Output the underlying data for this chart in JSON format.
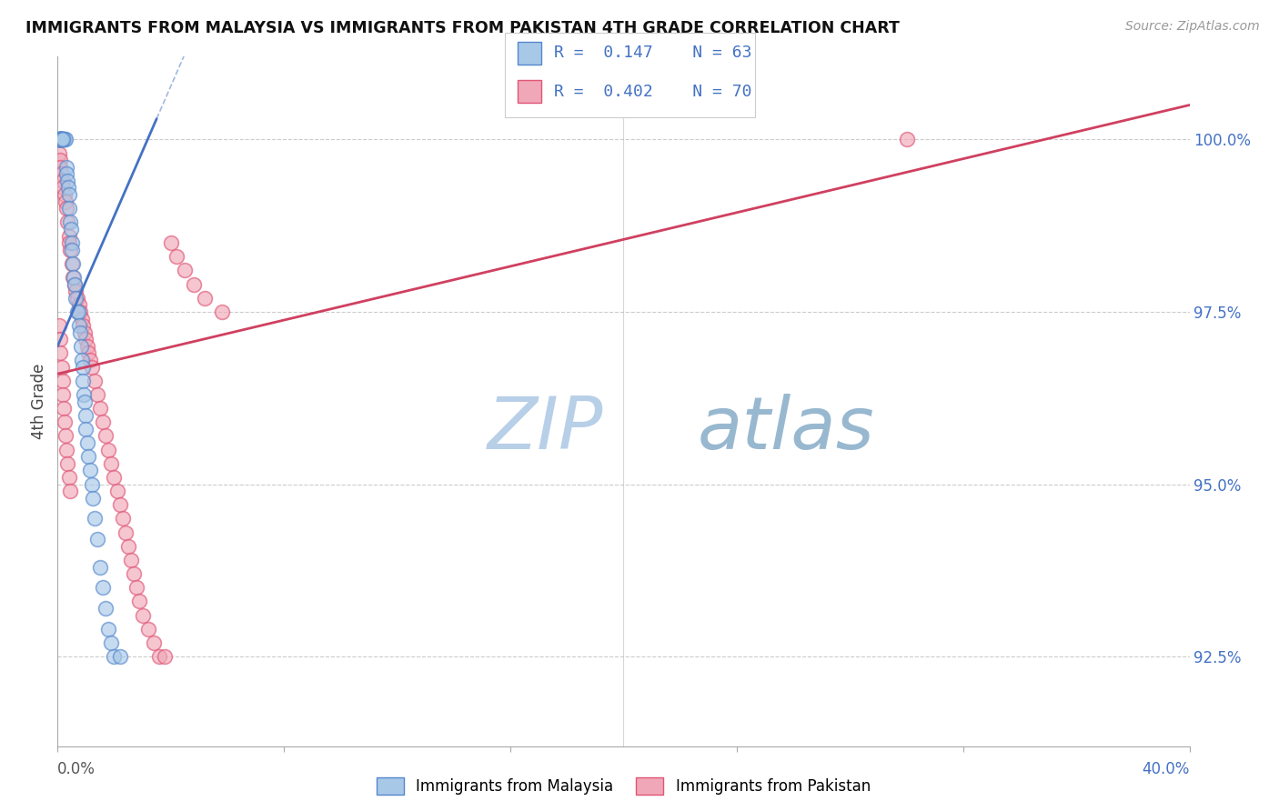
{
  "title": "IMMIGRANTS FROM MALAYSIA VS IMMIGRANTS FROM PAKISTAN 4TH GRADE CORRELATION CHART",
  "source": "Source: ZipAtlas.com",
  "ylabel": "4th Grade",
  "y_ticks": [
    92.5,
    95.0,
    97.5,
    100.0
  ],
  "y_tick_labels": [
    "92.5%",
    "95.0%",
    "97.5%",
    "100.0%"
  ],
  "x_range": [
    0.0,
    40.0
  ],
  "y_range": [
    91.2,
    101.2
  ],
  "legend_malaysia": "Immigrants from Malaysia",
  "legend_pakistan": "Immigrants from Pakistan",
  "R_malaysia": "0.147",
  "N_malaysia": "63",
  "R_pakistan": "0.402",
  "N_pakistan": "70",
  "color_malaysia_face": "#a8c8e8",
  "color_pakistan_face": "#f0a8b8",
  "color_malaysia_edge": "#5588cc",
  "color_pakistan_edge": "#e05575",
  "color_malaysia_line": "#4472c4",
  "color_pakistan_line": "#d04060",
  "color_text_blue": "#4472c4",
  "watermark_zip_color": "#c8ddf0",
  "watermark_atlas_color": "#c0d8e8",
  "malaysia_x": [
    0.05,
    0.08,
    0.1,
    0.12,
    0.15,
    0.18,
    0.2,
    0.22,
    0.25,
    0.28,
    0.3,
    0.32,
    0.35,
    0.38,
    0.4,
    0.42,
    0.45,
    0.48,
    0.5,
    0.52,
    0.55,
    0.58,
    0.6,
    0.65,
    0.7,
    0.72,
    0.75,
    0.8,
    0.82,
    0.85,
    0.88,
    0.9,
    0.92,
    0.95,
    0.98,
    1.0,
    1.05,
    1.1,
    1.15,
    1.2,
    1.25,
    1.3,
    1.4,
    1.5,
    1.6,
    1.7,
    1.8,
    1.9,
    2.0,
    2.2,
    0.05,
    0.05,
    0.07,
    0.08,
    0.09,
    0.1,
    0.11,
    0.12,
    0.13,
    0.14,
    0.15,
    0.16,
    0.17
  ],
  "malaysia_y": [
    100.0,
    100.0,
    100.0,
    100.0,
    100.0,
    100.0,
    100.0,
    100.0,
    100.0,
    100.0,
    99.6,
    99.5,
    99.4,
    99.3,
    99.2,
    99.0,
    98.8,
    98.7,
    98.5,
    98.4,
    98.2,
    98.0,
    97.9,
    97.7,
    97.5,
    97.5,
    97.3,
    97.2,
    97.0,
    96.8,
    96.7,
    96.5,
    96.3,
    96.2,
    96.0,
    95.8,
    95.6,
    95.4,
    95.2,
    95.0,
    94.8,
    94.5,
    94.2,
    93.8,
    93.5,
    93.2,
    92.9,
    92.7,
    92.5,
    92.5,
    100.0,
    100.0,
    100.0,
    100.0,
    100.0,
    100.0,
    100.0,
    100.0,
    100.0,
    100.0,
    100.0,
    100.0,
    100.0
  ],
  "pakistan_x": [
    0.05,
    0.08,
    0.1,
    0.15,
    0.18,
    0.2,
    0.25,
    0.28,
    0.3,
    0.35,
    0.4,
    0.42,
    0.45,
    0.5,
    0.55,
    0.6,
    0.65,
    0.7,
    0.75,
    0.8,
    0.85,
    0.9,
    0.95,
    1.0,
    1.05,
    1.1,
    1.15,
    1.2,
    1.3,
    1.4,
    1.5,
    1.6,
    1.7,
    1.8,
    1.9,
    2.0,
    2.1,
    2.2,
    2.3,
    2.4,
    2.5,
    2.6,
    2.7,
    2.8,
    2.9,
    3.0,
    3.2,
    3.4,
    3.6,
    3.8,
    4.0,
    4.2,
    4.5,
    4.8,
    5.2,
    5.8,
    0.05,
    0.08,
    0.1,
    0.15,
    0.18,
    0.2,
    0.22,
    0.25,
    0.28,
    0.3,
    0.35,
    0.4,
    0.45,
    30.0
  ],
  "pakistan_y": [
    99.8,
    99.7,
    99.6,
    99.5,
    99.4,
    99.3,
    99.2,
    99.1,
    99.0,
    98.8,
    98.6,
    98.5,
    98.4,
    98.2,
    98.0,
    97.9,
    97.8,
    97.7,
    97.6,
    97.5,
    97.4,
    97.3,
    97.2,
    97.1,
    97.0,
    96.9,
    96.8,
    96.7,
    96.5,
    96.3,
    96.1,
    95.9,
    95.7,
    95.5,
    95.3,
    95.1,
    94.9,
    94.7,
    94.5,
    94.3,
    94.1,
    93.9,
    93.7,
    93.5,
    93.3,
    93.1,
    92.9,
    92.7,
    92.5,
    92.5,
    98.5,
    98.3,
    98.1,
    97.9,
    97.7,
    97.5,
    97.3,
    97.1,
    96.9,
    96.7,
    96.5,
    96.3,
    96.1,
    95.9,
    95.7,
    95.5,
    95.3,
    95.1,
    94.9,
    100.0
  ],
  "mal_trend_x0": 0.0,
  "mal_trend_y0": 97.0,
  "mal_trend_x1": 3.5,
  "mal_trend_y1": 100.3,
  "pak_trend_x0": 0.0,
  "pak_trend_y0": 96.6,
  "pak_trend_x1": 40.0,
  "pak_trend_y1": 100.5
}
